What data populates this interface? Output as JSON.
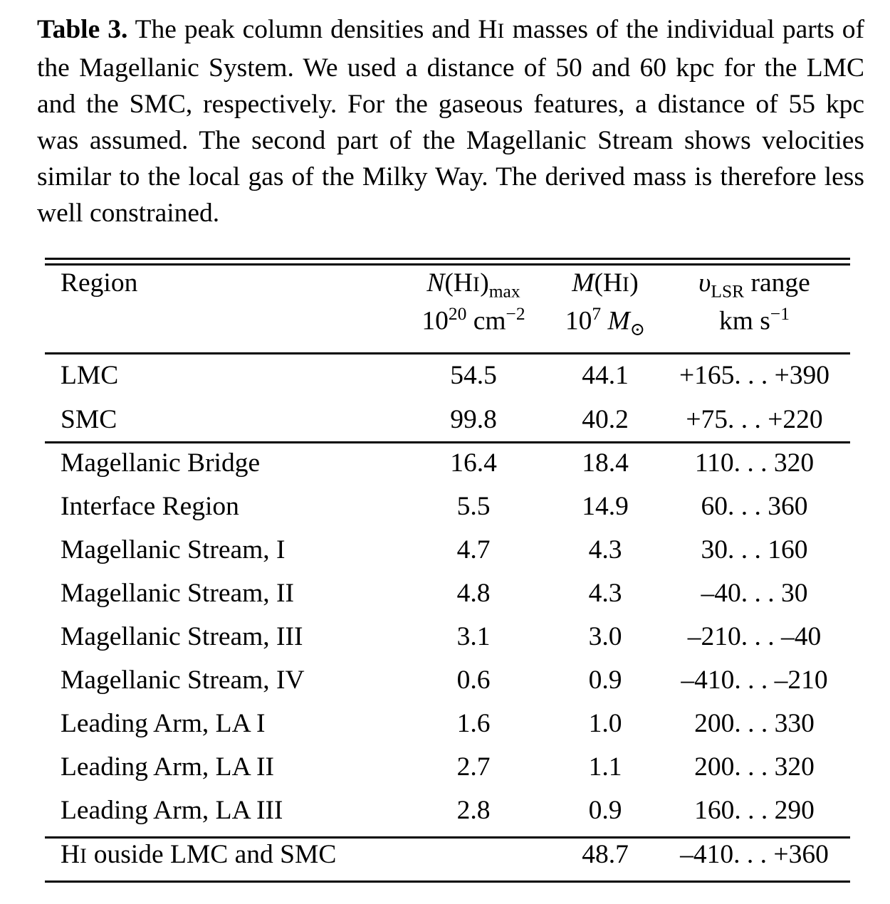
{
  "caption": {
    "label": "Table 3.",
    "text_before_hi": " The peak column densities and H",
    "hi_roman": "I",
    "text_after_hi": " masses of the individual parts of the Magellanic System. We used a distance of 50 and 60 kpc for the LMC and the SMC, respectively. For the gaseous features, a distance of 55 kpc was assumed. The second part of the Magellanic Stream shows velocities similar to the local gas of the Milky Way. The derived mass is therefore less well constrained."
  },
  "header": {
    "region": "Region",
    "n_hi_symbol": "N",
    "n_hi_paren": "(H",
    "n_hi_roman": "I",
    "n_hi_close": ")",
    "n_hi_sub": "max",
    "n_unit_base": "10",
    "n_unit_exp": "20",
    "n_unit_cm": " cm",
    "n_unit_cm_exp": "−2",
    "m_hi_symbol": "M",
    "m_hi_paren": "(H",
    "m_hi_roman": "I",
    "m_hi_close": ")",
    "m_unit_base": "10",
    "m_unit_exp": "7",
    "m_unit_sym": "M",
    "m_unit_sun": "⊙",
    "v_symbol": "υ",
    "v_sub": "LSR",
    "v_range": " range",
    "v_unit": "km s",
    "v_unit_exp": "−1"
  },
  "groups": [
    [
      {
        "region": "LMC",
        "n": "54.5",
        "m": "44.1",
        "v": "+165. . . +390"
      },
      {
        "region": "SMC",
        "n": "99.8",
        "m": "40.2",
        "v": "+75. . . +220"
      }
    ],
    [
      {
        "region": "Magellanic Bridge",
        "n": "16.4",
        "m": "18.4",
        "v": "110. . . 320"
      },
      {
        "region": "Interface Region",
        "n": "5.5",
        "m": "14.9",
        "v": "60. . . 360"
      },
      {
        "region": "Magellanic Stream, I",
        "n": "4.7",
        "m": "4.3",
        "v": "30. . . 160"
      },
      {
        "region": "Magellanic Stream, II",
        "n": "4.8",
        "m": "4.3",
        "v": "–40. . . 30"
      },
      {
        "region": "Magellanic Stream, III",
        "n": "3.1",
        "m": "3.0",
        "v": "–210. . . –40"
      },
      {
        "region": "Magellanic Stream, IV",
        "n": "0.6",
        "m": "0.9",
        "v": "–410. . . –210"
      },
      {
        "region": "Leading Arm, LA I",
        "n": "1.6",
        "m": "1.0",
        "v": "200. . . 330"
      },
      {
        "region": "Leading Arm, LA II",
        "n": "2.7",
        "m": "1.1",
        "v": "200. . . 320"
      },
      {
        "region": "Leading Arm, LA III",
        "n": "2.8",
        "m": "0.9",
        "v": "160. . . 290"
      }
    ]
  ],
  "summary": {
    "region_prefix": "H",
    "region_roman": "I",
    "region_rest": " ouside LMC and SMC",
    "n": "",
    "m": "48.7",
    "v": "–410. . . +360"
  }
}
